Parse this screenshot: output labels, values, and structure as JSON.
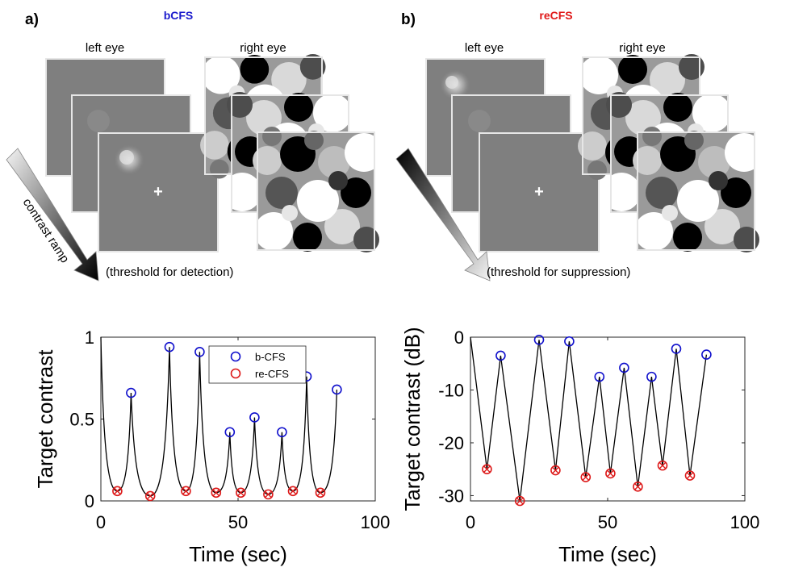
{
  "panel_a": {
    "letter": "a)",
    "title": "bCFS",
    "title_color": "#1a1acc",
    "left_eye": "left eye",
    "right_eye": "right eye",
    "ramp_label": "contrast ramp",
    "threshold_label": "(threshold for detection)"
  },
  "panel_b": {
    "letter": "b)",
    "title": "reCFS",
    "title_color": "#e01818",
    "left_eye": "left eye",
    "right_eye": "right eye",
    "threshold_label": "(threshold for suppression)"
  },
  "colors": {
    "bcfs": "#1010cc",
    "recfs": "#dd1a1a",
    "trace": "#000000"
  },
  "chart_data": [
    {
      "type": "line",
      "xlabel": "Time (sec)",
      "ylabel": "Target contrast",
      "xlim": [
        0,
        100
      ],
      "ylim": [
        0,
        1
      ],
      "xticks": [
        0,
        50,
        100
      ],
      "yticks": [
        0,
        0.5,
        1
      ],
      "ytick_labels": [
        "0",
        "0.5",
        "1"
      ],
      "xtick_labels": [
        "0",
        "50",
        "100"
      ],
      "legend": {
        "position": "top-right",
        "entries": [
          "b-CFS",
          "re-CFS"
        ]
      },
      "series": [
        {
          "name": "b-CFS",
          "marker": "circle",
          "x": [
            11,
            25,
            36,
            47,
            56,
            66,
            75,
            86
          ],
          "y": [
            0.66,
            0.94,
            0.91,
            0.42,
            0.51,
            0.42,
            0.76,
            0.68
          ]
        },
        {
          "name": "re-CFS",
          "marker": "circle-x",
          "x": [
            6,
            18,
            31,
            42,
            51,
            61,
            70,
            80
          ],
          "y": [
            0.06,
            0.03,
            0.06,
            0.05,
            0.05,
            0.04,
            0.06,
            0.05
          ]
        }
      ],
      "trace": {
        "start": [
          0,
          1.0
        ],
        "end": [
          86,
          0.68
        ]
      }
    },
    {
      "type": "line",
      "xlabel": "Time (sec)",
      "ylabel": "Target contrast (dB)",
      "xlim": [
        0,
        100
      ],
      "ylim": [
        -31,
        0
      ],
      "xticks": [
        0,
        50,
        100
      ],
      "yticks": [
        0,
        -10,
        -20,
        -30
      ],
      "ytick_labels": [
        "0",
        "-10",
        "-20",
        "-30"
      ],
      "xtick_labels": [
        "0",
        "50",
        "100"
      ],
      "series": [
        {
          "name": "b-CFS",
          "marker": "circle",
          "x": [
            11,
            25,
            36,
            47,
            56,
            66,
            75,
            86
          ],
          "y": [
            -3.5,
            -0.5,
            -0.8,
            -7.5,
            -5.8,
            -7.5,
            -2.2,
            -3.3
          ]
        },
        {
          "name": "re-CFS",
          "marker": "circle-x",
          "x": [
            6,
            18,
            31,
            42,
            51,
            61,
            70,
            80
          ],
          "y": [
            -25,
            -31,
            -25.2,
            -26.5,
            -25.8,
            -28.3,
            -24.3,
            -26.2
          ]
        }
      ],
      "trace": {
        "start": [
          0,
          0
        ],
        "end": [
          86,
          -3.3
        ]
      }
    }
  ]
}
